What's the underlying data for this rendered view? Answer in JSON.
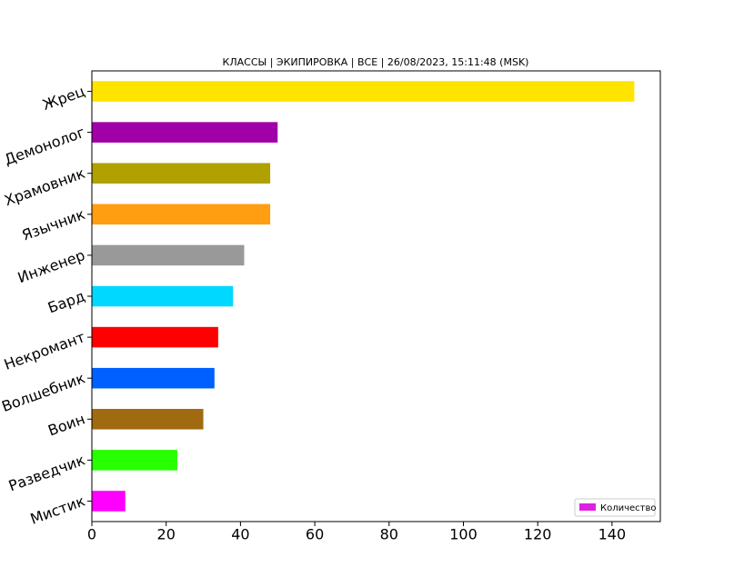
{
  "chart_data": {
    "type": "barh",
    "title": "КЛАССЫ | ЭКИПИРОВКА | ВСЕ | 26/08/2023, 15:11:48 (MSK)",
    "categories": [
      "Жрец",
      "Демонолог",
      "Храмовник",
      "Язычник",
      "Инженер",
      "Бард",
      "Некромант",
      "Волшебник",
      "Воин",
      "Разведчик",
      "Мистик"
    ],
    "series": [
      {
        "name": "Количество",
        "color": "#e020e0",
        "values": [
          146,
          50,
          48,
          48,
          41,
          38,
          34,
          33,
          30,
          23,
          9
        ],
        "colors": [
          "#ffe400",
          "#a000a8",
          "#b0a000",
          "#ff9e10",
          "#999999",
          "#00d8ff",
          "#ff0000",
          "#0060ff",
          "#a06a10",
          "#28ff00",
          "#ff00ff"
        ]
      }
    ],
    "xlim": [
      0,
      153
    ],
    "xticks": [
      0,
      20,
      40,
      60,
      80,
      100,
      120,
      140
    ],
    "legend": "lower right",
    "grid": false
  }
}
